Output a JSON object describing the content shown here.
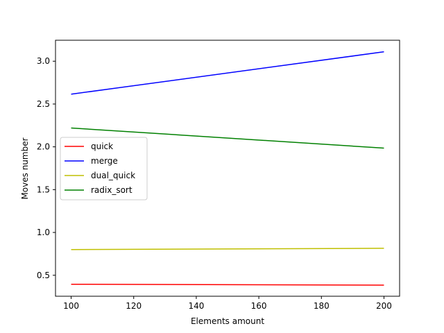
{
  "chart_data": {
    "type": "line",
    "title": "",
    "xlabel": "Elements amount",
    "ylabel": "Moves number",
    "x": [
      100,
      200
    ],
    "xlim": [
      95,
      205
    ],
    "ylim": [
      0.255,
      3.245
    ],
    "xticks": [
      100,
      120,
      140,
      160,
      180,
      200
    ],
    "yticks": [
      0.5,
      1.0,
      1.5,
      2.0,
      2.5,
      3.0
    ],
    "xtick_labels": [
      "100",
      "120",
      "140",
      "160",
      "180",
      "200"
    ],
    "ytick_labels": [
      "0.5",
      "1.0",
      "1.5",
      "2.0",
      "2.5",
      "3.0"
    ],
    "grid": false,
    "legend_position": "center-left",
    "series": [
      {
        "name": "quick",
        "color": "#ff0000",
        "values": [
          0.395,
          0.385
        ]
      },
      {
        "name": "merge",
        "color": "#0000ff",
        "values": [
          2.615,
          3.11
        ]
      },
      {
        "name": "dual_quick",
        "color": "#bfbf00",
        "values": [
          0.8,
          0.815
        ]
      },
      {
        "name": "radix_sort",
        "color": "#008000",
        "values": [
          2.22,
          1.985
        ]
      }
    ]
  }
}
